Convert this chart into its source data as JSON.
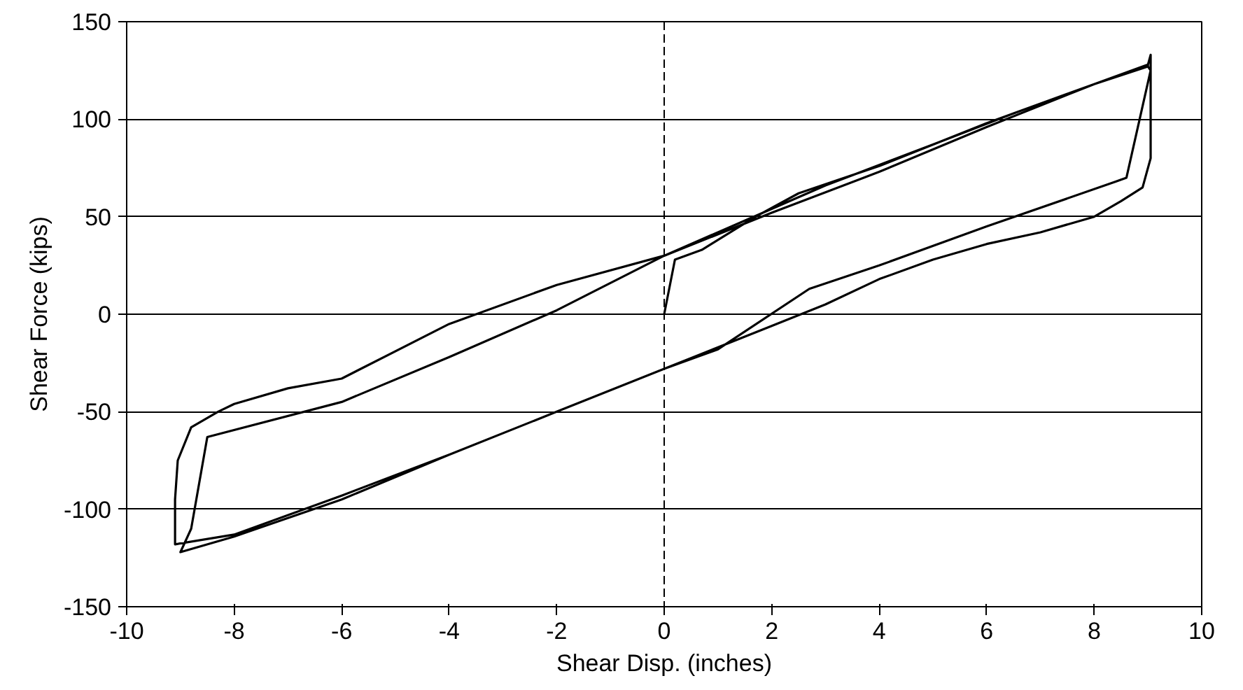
{
  "chart_data": {
    "type": "line",
    "xlabel": "Shear Disp. (inches)",
    "ylabel": "Shear Force (kips)",
    "xlim": [
      -10,
      10
    ],
    "ylim": [
      -150,
      150
    ],
    "xticks": [
      -10,
      -8,
      -6,
      -4,
      -2,
      0,
      2,
      4,
      6,
      8,
      10
    ],
    "yticks": [
      -150,
      -100,
      -50,
      0,
      50,
      100,
      150
    ],
    "grid": "y",
    "marker": "none",
    "line_style": "solid",
    "ref_lines": [
      {
        "axis": "x",
        "value": 0,
        "color": "#000000",
        "line_style": "dashed"
      }
    ],
    "series": [
      {
        "color": "#000000",
        "x": [
          0,
          0.2,
          0.7,
          1.7,
          2.5,
          4,
          6,
          8,
          9,
          9.05,
          8.6,
          8.4,
          6,
          4,
          2.7,
          1,
          0,
          -2,
          -4,
          -6,
          -8,
          -9,
          -8.8,
          -8.5,
          -6,
          -4,
          -2,
          0,
          2,
          4,
          6,
          8,
          9,
          9.05,
          9.05,
          8.9,
          8.5,
          8,
          7,
          6,
          5,
          4,
          3,
          2,
          0,
          -2,
          -4,
          -6,
          -8,
          -9.1,
          -9.1,
          -9.05,
          -8.8,
          -8.3,
          -8,
          -7,
          -6,
          -4,
          -2,
          0,
          1.5,
          3,
          5,
          6.5,
          8,
          9,
          9
        ],
        "values": [
          0,
          28,
          33,
          50,
          62,
          76,
          98,
          118,
          127,
          125,
          70,
          68,
          45,
          25,
          13,
          -18,
          -28,
          -50,
          -72,
          -95,
          -114,
          -122,
          -110,
          -63,
          -45,
          -22,
          2,
          30,
          52,
          73,
          96,
          118,
          128,
          133,
          80,
          65,
          58,
          50,
          42,
          36,
          28,
          18,
          5,
          -6,
          -28,
          -50,
          -72,
          -93,
          -113,
          -118,
          -95,
          -75,
          -58,
          -50,
          -46,
          -38,
          -33,
          -5,
          15,
          30,
          48,
          66,
          87,
          103,
          118,
          127,
          128
        ]
      }
    ]
  }
}
